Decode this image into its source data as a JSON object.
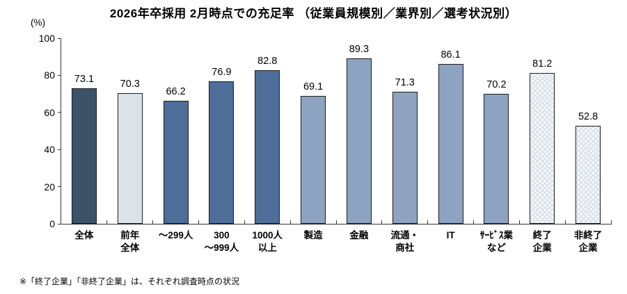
{
  "title": "2026年卒採用 2月時点での充足率 （従業員規模別／業界別／選考状況別）",
  "footnote": "※「終了企業」「非終了企業」は、それぞれ調査時点の状況",
  "chart_data": {
    "type": "bar",
    "title": "2026年卒採用 2月時点での充足率 （従業員規模別／業界別／選考状況別）",
    "xlabel": "",
    "ylabel": "(%)",
    "ylim": [
      0,
      100
    ],
    "yticks": [
      0,
      20,
      40,
      60,
      80,
      100
    ],
    "grid": false,
    "legend": "none",
    "categories": [
      "全体",
      "前年全体",
      "～299人",
      "300～999人",
      "1000人以上",
      "製造",
      "金融",
      "流通・商社",
      "IT",
      "ｻｰﾋﾞｽ業など",
      "終了企業",
      "非終了企業"
    ],
    "category_lines": [
      [
        "全体"
      ],
      [
        "前年",
        "全体"
      ],
      [
        "～299人"
      ],
      [
        "300",
        "～999人"
      ],
      [
        "1000人",
        "以上"
      ],
      [
        "製造"
      ],
      [
        "金融"
      ],
      [
        "流通・",
        "商社"
      ],
      [
        "IT"
      ],
      [
        "ｻｰﾋﾞｽ業",
        "など"
      ],
      [
        "終了",
        "企業"
      ],
      [
        "非終了",
        "企業"
      ]
    ],
    "values": [
      73.1,
      70.3,
      66.2,
      76.9,
      82.8,
      69.1,
      89.3,
      71.3,
      86.1,
      70.2,
      81.2,
      52.8
    ],
    "bar_styles": [
      "dark",
      "pale",
      "medium",
      "medium",
      "medium",
      "light",
      "light",
      "light",
      "light",
      "light",
      "dotted",
      "dotted"
    ],
    "colors": {
      "dark": "#3C5269",
      "pale": "#DBE2EA",
      "medium": "#4E6D99",
      "light": "#8DA3C1",
      "dotted_base": "#DDE4EE",
      "dot": "#FFFFFF",
      "border": "#1B1B1B",
      "axis": "#333333"
    }
  }
}
